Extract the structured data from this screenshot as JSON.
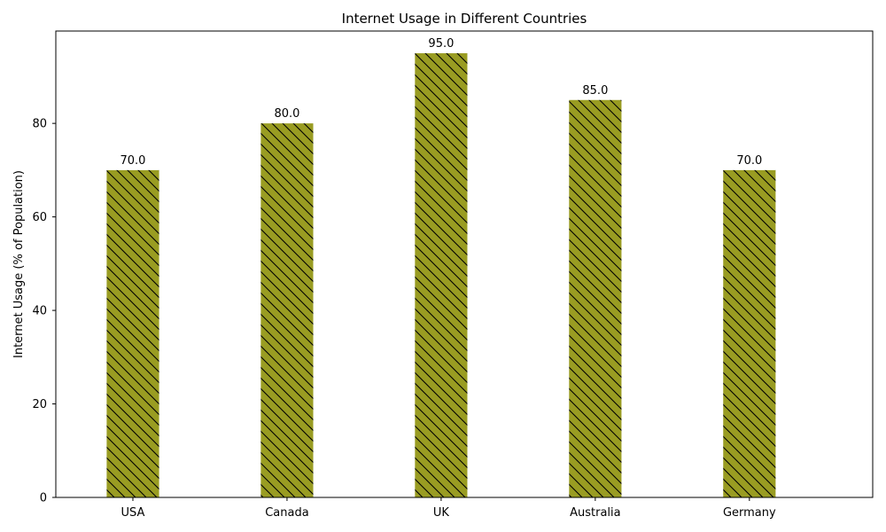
{
  "chart_data": {
    "type": "bar",
    "title": "Internet Usage in Different Countries",
    "xlabel": "",
    "ylabel": "Internet Usage (% of Population)",
    "categories": [
      "USA",
      "Canada",
      "UK",
      "Australia",
      "Germany"
    ],
    "values": [
      70.0,
      80.0,
      95.0,
      85.0,
      70.0
    ],
    "data_labels": [
      "70.0",
      "80.0",
      "95.0",
      "85.0",
      "70.0"
    ],
    "ylim": [
      0,
      99.75
    ],
    "yticks": [
      0,
      20,
      40,
      60,
      80
    ],
    "ytick_labels": [
      "0",
      "20",
      "40",
      "60",
      "80"
    ],
    "bar_color": "#999c22",
    "hatch": "diagonal-backslash",
    "grid": false,
    "legend": "none"
  }
}
